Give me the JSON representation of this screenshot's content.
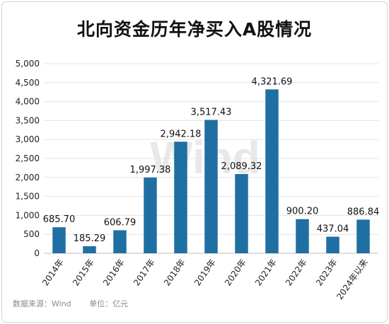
{
  "chart_data": {
    "type": "bar",
    "title": "北向资金历年净买入A股情况",
    "categories": [
      "2014年",
      "2015年",
      "2016年",
      "2017年",
      "2018年",
      "2019年",
      "2020年",
      "2021年",
      "2022年",
      "2023年",
      "2024年以来"
    ],
    "values": [
      685.7,
      185.29,
      606.79,
      1997.38,
      2942.18,
      3517.43,
      2089.32,
      4321.69,
      900.2,
      437.04,
      886.84
    ],
    "value_labels": [
      "685.70",
      "185.29",
      "606.79",
      "1,997.38",
      "2,942.18",
      "3,517.43",
      "2,089.32",
      "4,321.69",
      "900.20",
      "437.04",
      "886.84"
    ],
    "ylim": [
      0,
      5000
    ],
    "yticks": [
      0,
      500,
      1000,
      1500,
      2000,
      2500,
      3000,
      3500,
      4000,
      4500,
      5000
    ],
    "ytick_labels": [
      "0",
      "500",
      "1,000",
      "1,500",
      "2,000",
      "2,500",
      "3,000",
      "3,500",
      "4,000",
      "4,500",
      "5,000"
    ],
    "grid": true,
    "bar_color": "#1f6fa3"
  },
  "source_text": "数据来源：Wind",
  "unit_text": "单位：亿元",
  "watermark": "Wind"
}
